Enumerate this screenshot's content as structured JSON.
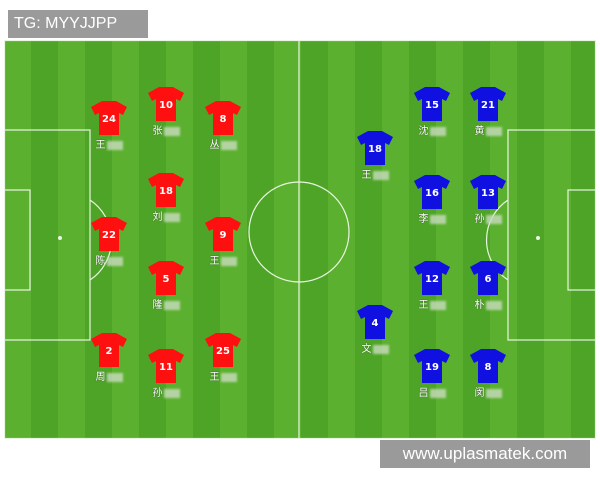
{
  "source_tag": "TG: MYYJJPP",
  "watermark": "www.uplasmatek.com",
  "colors": {
    "home": "#ff1010",
    "away": "#1010e0",
    "pitch_light": "#5cb030",
    "pitch_dark": "#4ea426"
  },
  "home": [
    {
      "number": "24",
      "name": "王"
    },
    {
      "number": "10",
      "name": "张"
    },
    {
      "number": "8",
      "name": "丛"
    },
    {
      "number": "18",
      "name": "刘"
    },
    {
      "number": "22",
      "name": "陈"
    },
    {
      "number": "9",
      "name": "王"
    },
    {
      "number": "5",
      "name": "隆"
    },
    {
      "number": "2",
      "name": "周"
    },
    {
      "number": "11",
      "name": "孙"
    },
    {
      "number": "25",
      "name": "王"
    }
  ],
  "away": [
    {
      "number": "18",
      "name": "王"
    },
    {
      "number": "15",
      "name": "沈"
    },
    {
      "number": "21",
      "name": "黄"
    },
    {
      "number": "16",
      "name": "李"
    },
    {
      "number": "13",
      "name": "孙"
    },
    {
      "number": "12",
      "name": "王"
    },
    {
      "number": "6",
      "name": "朴"
    },
    {
      "number": "4",
      "name": "文"
    },
    {
      "number": "19",
      "name": "吕"
    },
    {
      "number": "8",
      "name": "闵"
    }
  ]
}
